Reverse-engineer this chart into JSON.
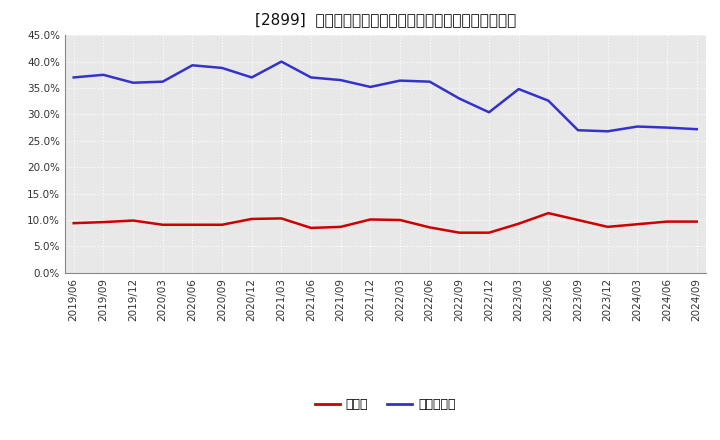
{
  "title": "[2899]  現預金、有利子負債の総資産に対する比率の推移",
  "x_labels": [
    "2019/06",
    "2019/09",
    "2019/12",
    "2020/03",
    "2020/06",
    "2020/09",
    "2020/12",
    "2021/03",
    "2021/06",
    "2021/09",
    "2021/12",
    "2022/03",
    "2022/06",
    "2022/09",
    "2022/12",
    "2023/03",
    "2023/06",
    "2023/09",
    "2023/12",
    "2024/03",
    "2024/06",
    "2024/09"
  ],
  "cash": [
    0.094,
    0.096,
    0.099,
    0.091,
    0.091,
    0.091,
    0.102,
    0.103,
    0.085,
    0.087,
    0.101,
    0.1,
    0.086,
    0.076,
    0.076,
    0.093,
    0.113,
    0.1,
    0.087,
    0.092,
    0.097,
    0.097
  ],
  "debt": [
    0.37,
    0.375,
    0.36,
    0.362,
    0.393,
    0.388,
    0.37,
    0.4,
    0.37,
    0.365,
    0.352,
    0.364,
    0.362,
    0.33,
    0.304,
    0.348,
    0.326,
    0.27,
    0.268,
    0.277,
    0.275,
    0.272
  ],
  "cash_color": "#cc0000",
  "debt_color": "#3333cc",
  "background_color": "#ffffff",
  "plot_bg_color": "#e8e8e8",
  "grid_color": "#ffffff",
  "ylim": [
    0.0,
    0.45
  ],
  "yticks": [
    0.0,
    0.05,
    0.1,
    0.15,
    0.2,
    0.25,
    0.3,
    0.35,
    0.4,
    0.45
  ],
  "legend_cash": "現預金",
  "legend_debt": "有利子負債",
  "title_fontsize": 11,
  "legend_fontsize": 9,
  "tick_fontsize": 7.5,
  "linewidth": 1.8
}
